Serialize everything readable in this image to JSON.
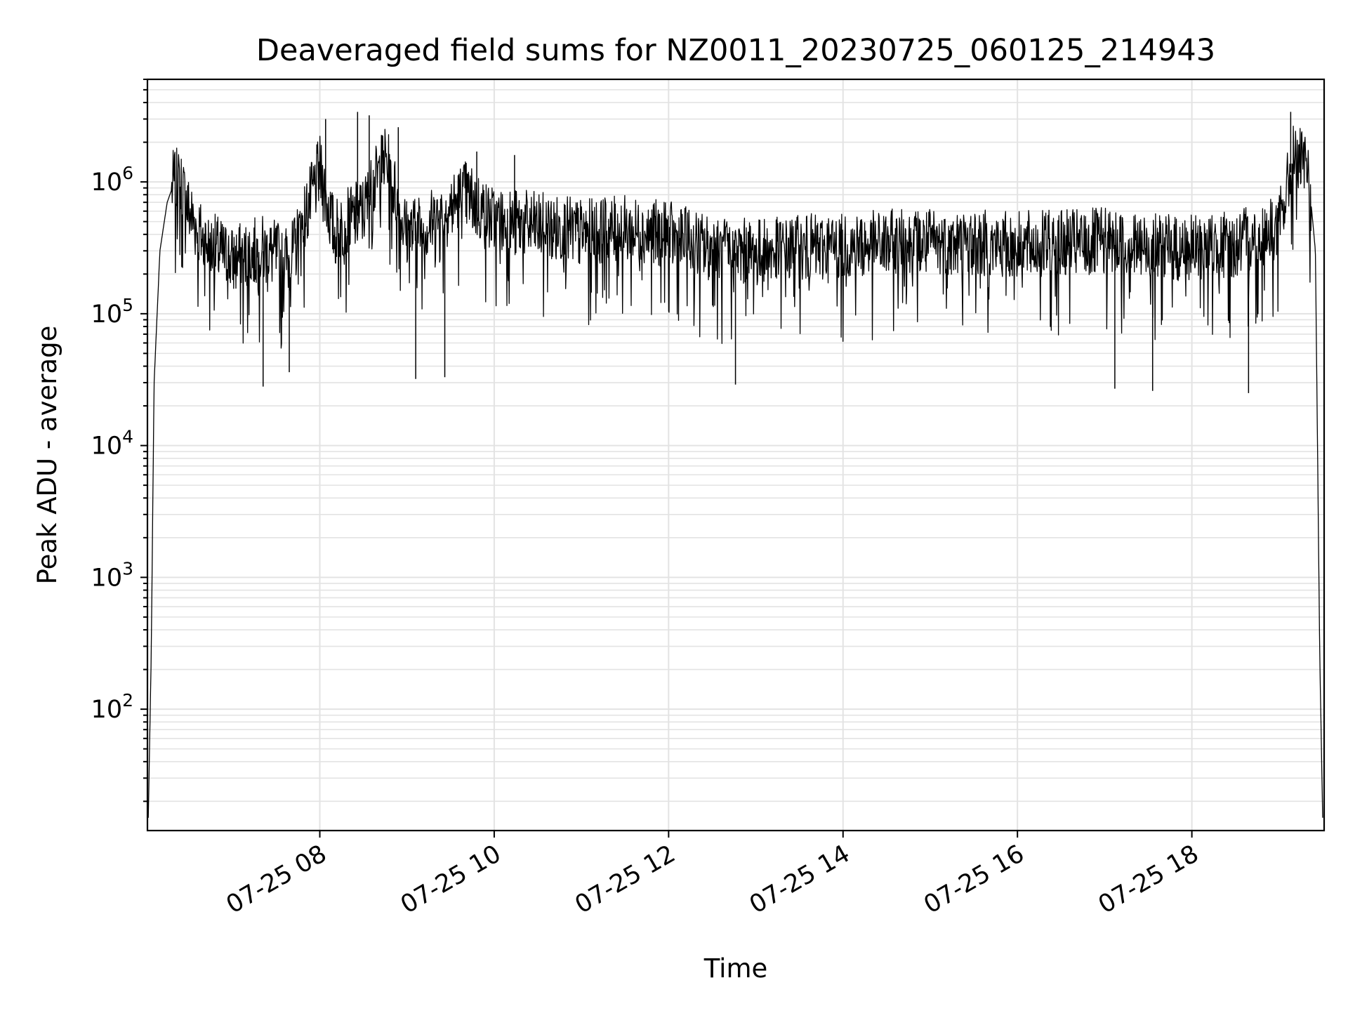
{
  "chart_data": {
    "type": "line",
    "title": "Deaveraged field sums for NZ0011_20230725_060125_214943",
    "xlabel": "Time",
    "ylabel": "Peak ADU - average",
    "yscale": "log",
    "ylim": [
      12,
      6000000
    ],
    "xlim": [
      "2023-07-25 06:01:25",
      "2023-07-25 19:31:00"
    ],
    "x_ticks": [
      {
        "value": "2023-07-25 08:00",
        "label": "07-25 08"
      },
      {
        "value": "2023-07-25 10:00",
        "label": "07-25 10"
      },
      {
        "value": "2023-07-25 12:00",
        "label": "07-25 12"
      },
      {
        "value": "2023-07-25 14:00",
        "label": "07-25 14"
      },
      {
        "value": "2023-07-25 16:00",
        "label": "07-25 16"
      },
      {
        "value": "2023-07-25 18:00",
        "label": "07-25 18"
      }
    ],
    "y_ticks": [
      {
        "value": 100,
        "base": "10",
        "exp": "2"
      },
      {
        "value": 1000,
        "base": "10",
        "exp": "3"
      },
      {
        "value": 10000,
        "base": "10",
        "exp": "4"
      },
      {
        "value": 100000,
        "base": "10",
        "exp": "5"
      },
      {
        "value": 1000000,
        "base": "10",
        "exp": "6"
      }
    ],
    "grid": true,
    "legend": "none",
    "series": [
      {
        "color": "#000000",
        "points": [
          [
            "2023-07-25 06:02",
            15
          ],
          [
            "2023-07-25 06:04",
            250
          ],
          [
            "2023-07-25 06:06",
            30000
          ],
          [
            "2023-07-25 06:10",
            300000
          ],
          [
            "2023-07-25 06:15",
            700000
          ],
          [
            "2023-07-25 06:20",
            1000000
          ],
          [
            "2023-07-25 06:25",
            900000
          ],
          [
            "2023-07-25 06:30",
            600000
          ],
          [
            "2023-07-25 06:40",
            350000
          ],
          [
            "2023-07-25 07:00",
            250000
          ],
          [
            "2023-07-25 07:20",
            300000
          ],
          [
            "2023-07-25 07:40",
            250000
          ],
          [
            "2023-07-25 08:00",
            1200000
          ],
          [
            "2023-07-25 08:10",
            400000
          ],
          [
            "2023-07-25 08:30",
            600000
          ],
          [
            "2023-07-25 08:45",
            1500000
          ],
          [
            "2023-07-25 09:00",
            400000
          ],
          [
            "2023-07-25 09:20",
            500000
          ],
          [
            "2023-07-25 09:40",
            800000
          ],
          [
            "2023-07-25 10:00",
            500000
          ],
          [
            "2023-07-25 10:30",
            450000
          ],
          [
            "2023-07-25 11:00",
            400000
          ],
          [
            "2023-07-25 11:30",
            420000
          ],
          [
            "2023-07-25 12:00",
            380000
          ],
          [
            "2023-07-25 12:30",
            300000
          ],
          [
            "2023-07-25 13:00",
            280000
          ],
          [
            "2023-07-25 13:30",
            300000
          ],
          [
            "2023-07-25 14:00",
            320000
          ],
          [
            "2023-07-25 14:30",
            330000
          ],
          [
            "2023-07-25 15:00",
            340000
          ],
          [
            "2023-07-25 15:30",
            330000
          ],
          [
            "2023-07-25 16:00",
            320000
          ],
          [
            "2023-07-25 16:30",
            330000
          ],
          [
            "2023-07-25 17:00",
            340000
          ],
          [
            "2023-07-25 17:30",
            310000
          ],
          [
            "2023-07-25 18:00",
            300000
          ],
          [
            "2023-07-25 18:30",
            320000
          ],
          [
            "2023-07-25 19:00",
            450000
          ],
          [
            "2023-07-25 19:10",
            1500000
          ],
          [
            "2023-07-25 19:20",
            1200000
          ],
          [
            "2023-07-25 19:25",
            300000
          ],
          [
            "2023-07-25 19:28",
            250
          ],
          [
            "2023-07-25 19:30",
            15
          ]
        ],
        "spikes": [
          [
            "2023-07-25 08:04",
            3000000
          ],
          [
            "2023-07-25 08:26",
            3400000
          ],
          [
            "2023-07-25 08:34",
            3200000
          ],
          [
            "2023-07-25 08:54",
            2600000
          ],
          [
            "2023-07-25 09:48",
            1700000
          ],
          [
            "2023-07-25 10:14",
            1600000
          ],
          [
            "2023-07-25 19:08",
            3400000
          ],
          [
            "2023-07-25 07:21",
            28000
          ],
          [
            "2023-07-25 07:39",
            36000
          ],
          [
            "2023-07-25 09:06",
            32000
          ],
          [
            "2023-07-25 09:26",
            33000
          ],
          [
            "2023-07-25 12:46",
            29000
          ],
          [
            "2023-07-25 17:07",
            27000
          ],
          [
            "2023-07-25 17:33",
            26000
          ],
          [
            "2023-07-25 18:39",
            25000
          ]
        ]
      }
    ]
  }
}
